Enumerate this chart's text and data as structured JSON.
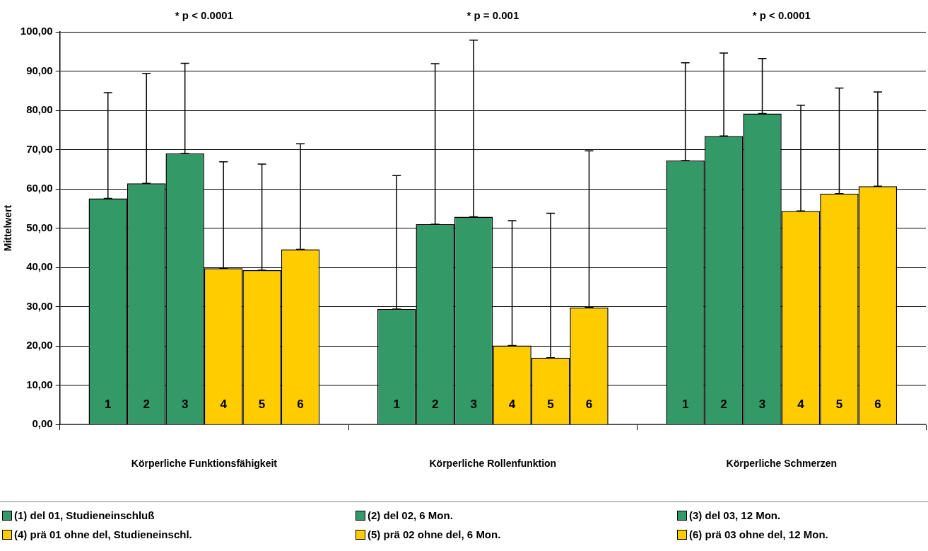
{
  "chart_data": {
    "type": "bar",
    "ylabel": "Mittelwert",
    "categories": [
      "Körperliche Funktionsfähigkeit",
      "Körperliche Rollenfunktion",
      "Körperliche Schmerzen"
    ],
    "series": [
      {
        "name": "(1) del 01, Studieneinschluß",
        "color": "#339966",
        "values": [
          57.6,
          29.4,
          67.2
        ],
        "errors": [
          [
            57.6,
            84.5
          ],
          [
            29.4,
            63.4
          ],
          [
            67.2,
            92.1
          ]
        ]
      },
      {
        "name": "(2) del 02, 6 Mon.",
        "color": "#339966",
        "values": [
          61.4,
          51.0,
          73.5
        ],
        "errors": [
          [
            61.4,
            89.4
          ],
          [
            51.0,
            91.9
          ],
          [
            73.5,
            94.6
          ]
        ]
      },
      {
        "name": "(3) del 03, 12 Mon.",
        "color": "#339966",
        "values": [
          69.0,
          52.9,
          79.2
        ],
        "errors": [
          [
            69.0,
            92.0
          ],
          [
            52.9,
            97.9
          ],
          [
            79.2,
            93.2
          ]
        ]
      },
      {
        "name": "(4) prä 01 ohne del, Studieneinschl.",
        "color": "#ffcc00",
        "values": [
          39.8,
          20.1,
          54.4
        ],
        "errors": [
          [
            39.8,
            66.9
          ],
          [
            20.1,
            51.9
          ],
          [
            54.4,
            81.3
          ]
        ]
      },
      {
        "name": "(5) prä 02 ohne del, 6 Mon.",
        "color": "#ffcc00",
        "values": [
          39.3,
          17.0,
          58.8
        ],
        "errors": [
          [
            39.3,
            66.3
          ],
          [
            17.0,
            53.8
          ],
          [
            58.8,
            85.7
          ]
        ]
      },
      {
        "name": "(6) prä 03 ohne del, 12 Mon.",
        "color": "#ffcc00",
        "values": [
          44.6,
          29.8,
          60.7
        ],
        "errors": [
          [
            44.6,
            71.5
          ],
          [
            29.8,
            69.7
          ],
          [
            60.7,
            84.7
          ]
        ]
      }
    ],
    "annotations": [
      "* p < 0.0001",
      "* p = 0.001",
      "* p < 0.0001",
      "1",
      "2",
      "3",
      "4",
      "5",
      "6",
      "1",
      "2",
      "3",
      "4",
      "5",
      "6",
      "1",
      "2",
      "3",
      "4",
      "5",
      "6"
    ],
    "ylim": [
      0,
      100
    ],
    "yticks": [
      {
        "value": 0,
        "label": "0,00"
      },
      {
        "value": 10,
        "label": "10,00"
      },
      {
        "value": 20,
        "label": "20,00"
      },
      {
        "value": 30,
        "label": "30,00"
      },
      {
        "value": 40,
        "label": "40,00"
      },
      {
        "value": 50,
        "label": "50,00"
      },
      {
        "value": 60,
        "label": "60,00"
      },
      {
        "value": 70,
        "label": "70,00"
      },
      {
        "value": 80,
        "label": "80,00"
      },
      {
        "value": 90,
        "label": "90,00"
      },
      {
        "value": 100,
        "label": "100,00"
      }
    ],
    "grid": "y",
    "legend": "bottom"
  }
}
